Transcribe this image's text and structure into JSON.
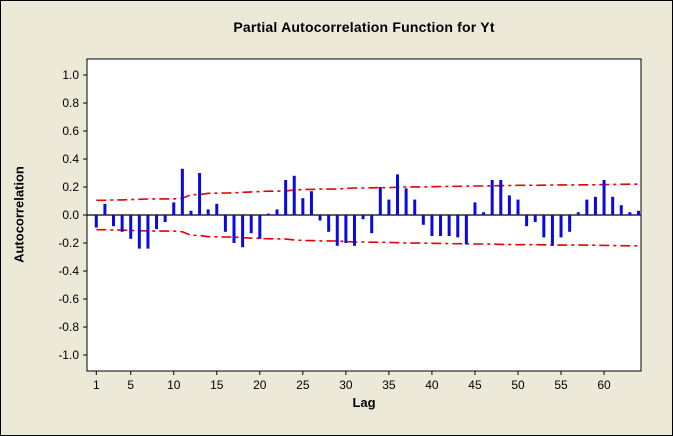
{
  "figure": {
    "title": "Partial Autocorrelation Function for Yt",
    "xlabel": "Lag",
    "ylabel": "Autocorrelation"
  },
  "chart_data": {
    "type": "bar",
    "subtype": "stem-pacf",
    "title": "Partial Autocorrelation Function for Yt",
    "xlabel": "Lag",
    "ylabel": "Autocorrelation",
    "ylim": [
      -1.0,
      1.0
    ],
    "xlim": [
      0,
      65
    ],
    "grid": false,
    "ytick_labels": [
      "1.0",
      "0.8",
      "0.6",
      "0.4",
      "0.2",
      "0.0",
      "-0.2",
      "-0.4",
      "-0.6",
      "-0.8",
      "-1.0"
    ],
    "ytick_values": [
      1.0,
      0.8,
      0.6,
      0.4,
      0.2,
      0.0,
      -0.2,
      -0.4,
      -0.6,
      -0.8,
      -1.0
    ],
    "xticks": [
      1,
      5,
      10,
      15,
      20,
      25,
      30,
      35,
      40,
      45,
      50,
      55,
      60
    ],
    "lags_start": 1,
    "values": [
      -0.09,
      0.08,
      -0.08,
      -0.12,
      -0.17,
      -0.24,
      -0.24,
      -0.1,
      -0.05,
      0.09,
      0.33,
      0.03,
      0.3,
      0.04,
      0.08,
      -0.12,
      -0.2,
      -0.23,
      -0.13,
      -0.17,
      0.01,
      0.04,
      0.25,
      0.28,
      0.12,
      0.17,
      -0.04,
      -0.12,
      -0.22,
      -0.2,
      -0.22,
      -0.03,
      -0.13,
      0.2,
      0.11,
      0.29,
      0.19,
      0.11,
      -0.07,
      -0.15,
      -0.15,
      -0.15,
      -0.16,
      -0.21,
      0.09,
      0.02,
      0.25,
      0.25,
      0.14,
      0.11,
      -0.08,
      -0.05,
      -0.16,
      -0.22,
      -0.16,
      -0.12,
      0.02,
      0.11,
      0.13,
      0.25,
      0.13,
      0.07,
      0.02,
      0.03
    ],
    "conf_upper": [
      0.105,
      0.105,
      0.107,
      0.108,
      0.11,
      0.112,
      0.114,
      0.115,
      0.115,
      0.115,
      0.12,
      0.145,
      0.146,
      0.155,
      0.156,
      0.157,
      0.158,
      0.162,
      0.165,
      0.168,
      0.17,
      0.17,
      0.172,
      0.178,
      0.182,
      0.183,
      0.185,
      0.185,
      0.186,
      0.19,
      0.193,
      0.193,
      0.194,
      0.195,
      0.196,
      0.198,
      0.2,
      0.201,
      0.201,
      0.202,
      0.203,
      0.204,
      0.205,
      0.206,
      0.207,
      0.207,
      0.208,
      0.21,
      0.211,
      0.212,
      0.212,
      0.212,
      0.213,
      0.214,
      0.215,
      0.215,
      0.215,
      0.216,
      0.216,
      0.217,
      0.218,
      0.219,
      0.22,
      0.22
    ],
    "legend": null,
    "colors": {
      "bar": "#0a0ae0",
      "conf_limit": "#e60000",
      "background": "#ece9d8",
      "plot_background": "#ffffff",
      "axis": "#000000"
    }
  }
}
